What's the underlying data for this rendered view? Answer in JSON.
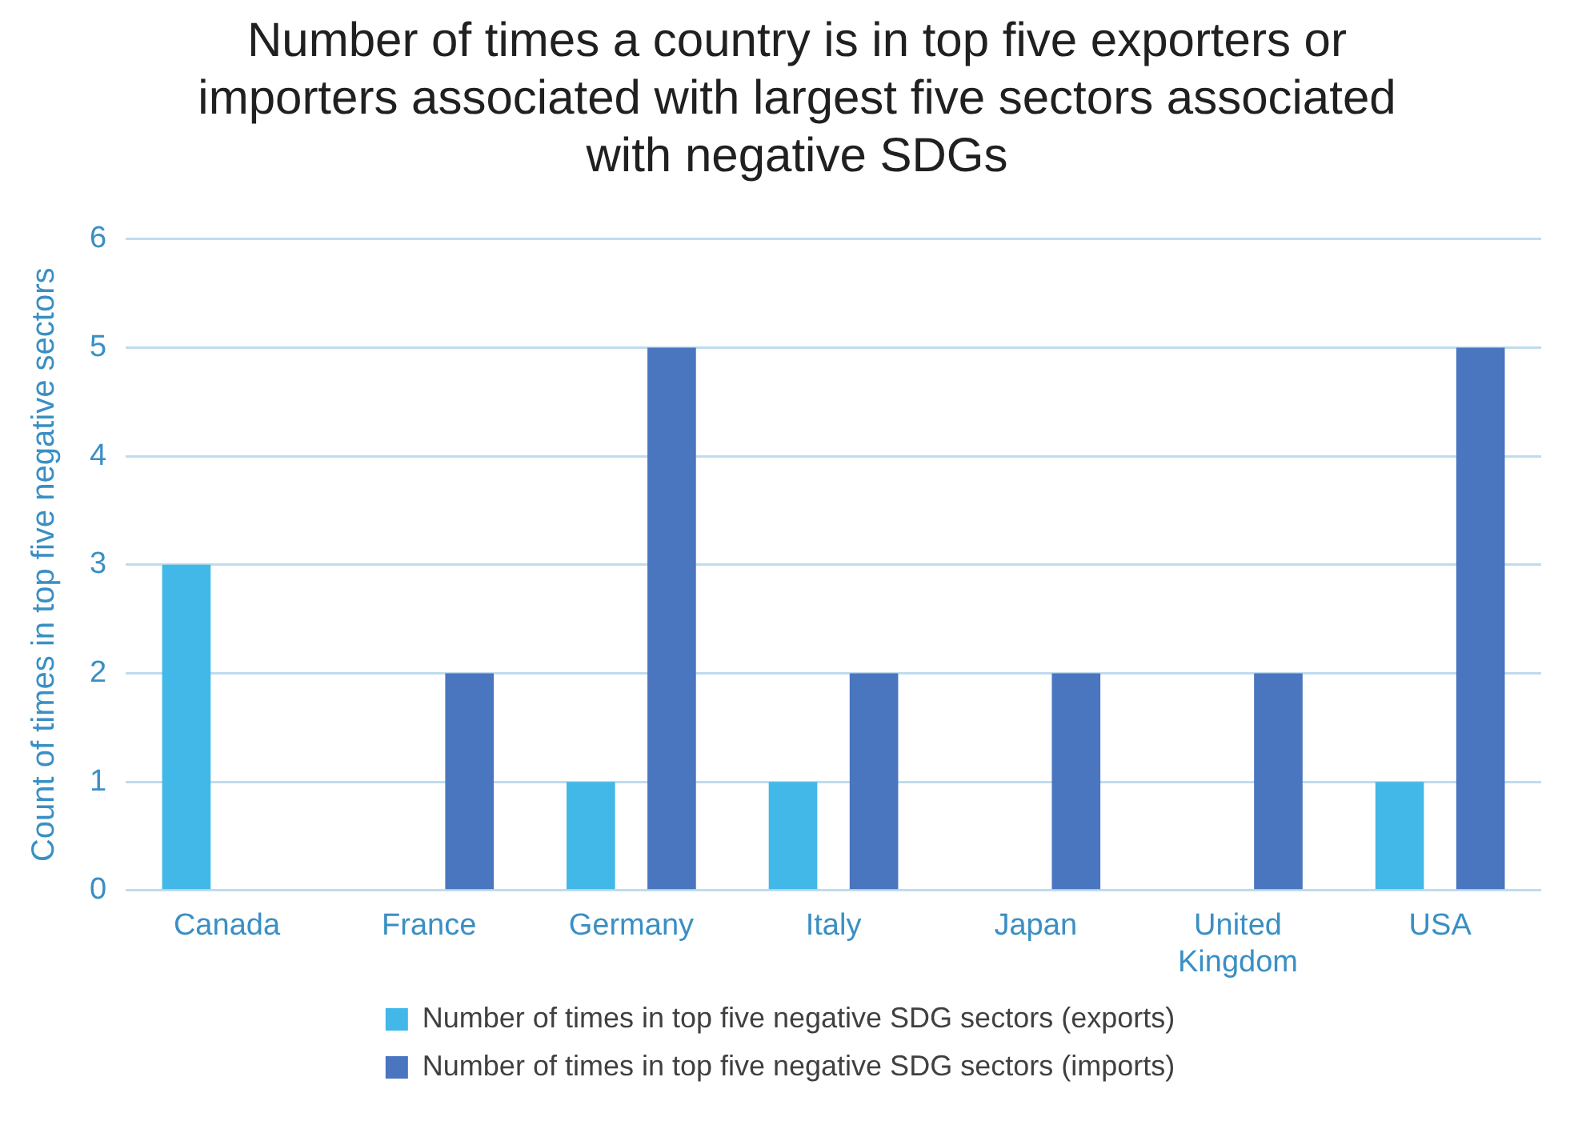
{
  "chart_data": {
    "type": "bar",
    "title": "Number of times a country is in top five exporters or importers associated with largest five sectors associated with negative SDGs",
    "ylabel": "Count of times in top five negative sectors",
    "categories": [
      "Canada",
      "France",
      "Germany",
      "Italy",
      "Japan",
      "United Kingdom",
      "USA"
    ],
    "series": [
      {
        "name": "Number of times in top five negative SDG sectors (exports)",
        "color": "#41b8e8",
        "values": [
          3,
          0,
          1,
          1,
          0,
          0,
          1
        ]
      },
      {
        "name": "Number of times in top five negative SDG sectors (imports)",
        "color": "#4a75bf",
        "values": [
          0,
          2,
          5,
          2,
          2,
          2,
          5
        ]
      }
    ],
    "ylim": [
      0,
      6
    ],
    "yticks": [
      0,
      1,
      2,
      3,
      4,
      5,
      6
    ],
    "grid": "y",
    "legend": "bottom"
  }
}
